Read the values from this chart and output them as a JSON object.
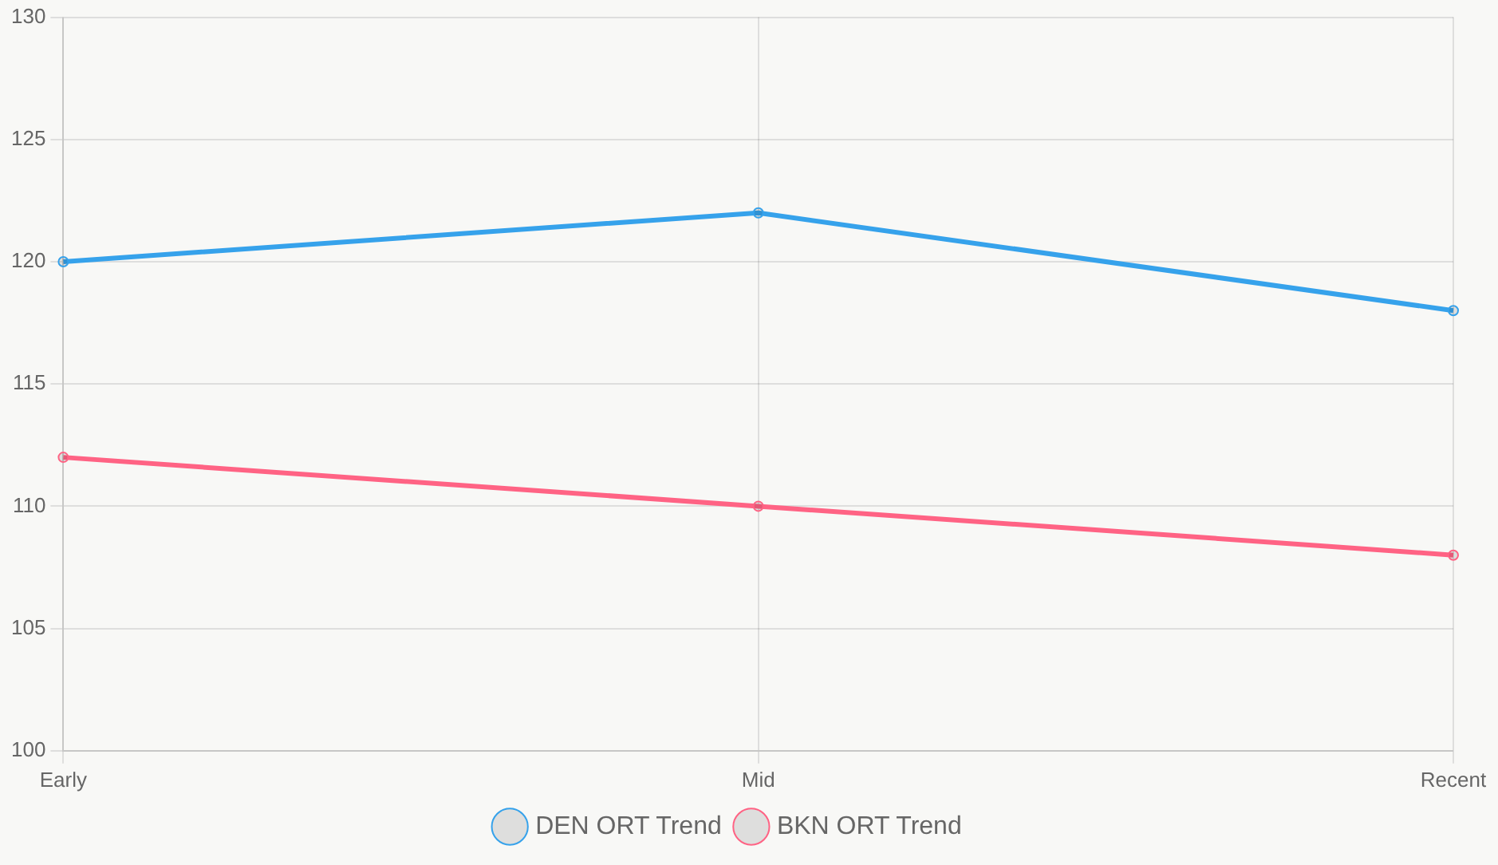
{
  "chart_data": {
    "type": "line",
    "categories": [
      "Early",
      "Mid",
      "Recent"
    ],
    "series": [
      {
        "name": "DEN ORT Trend",
        "color": "#36a2eb",
        "values": [
          120,
          122,
          118
        ]
      },
      {
        "name": "BKN ORT Trend",
        "color": "#ff6384",
        "values": [
          112,
          110,
          108
        ]
      }
    ],
    "ylim": [
      100,
      130
    ],
    "yticks": [
      100,
      105,
      110,
      115,
      120,
      125,
      130
    ],
    "grid": true,
    "legend": "bottom",
    "marker": "circle",
    "line_style": "solid"
  }
}
